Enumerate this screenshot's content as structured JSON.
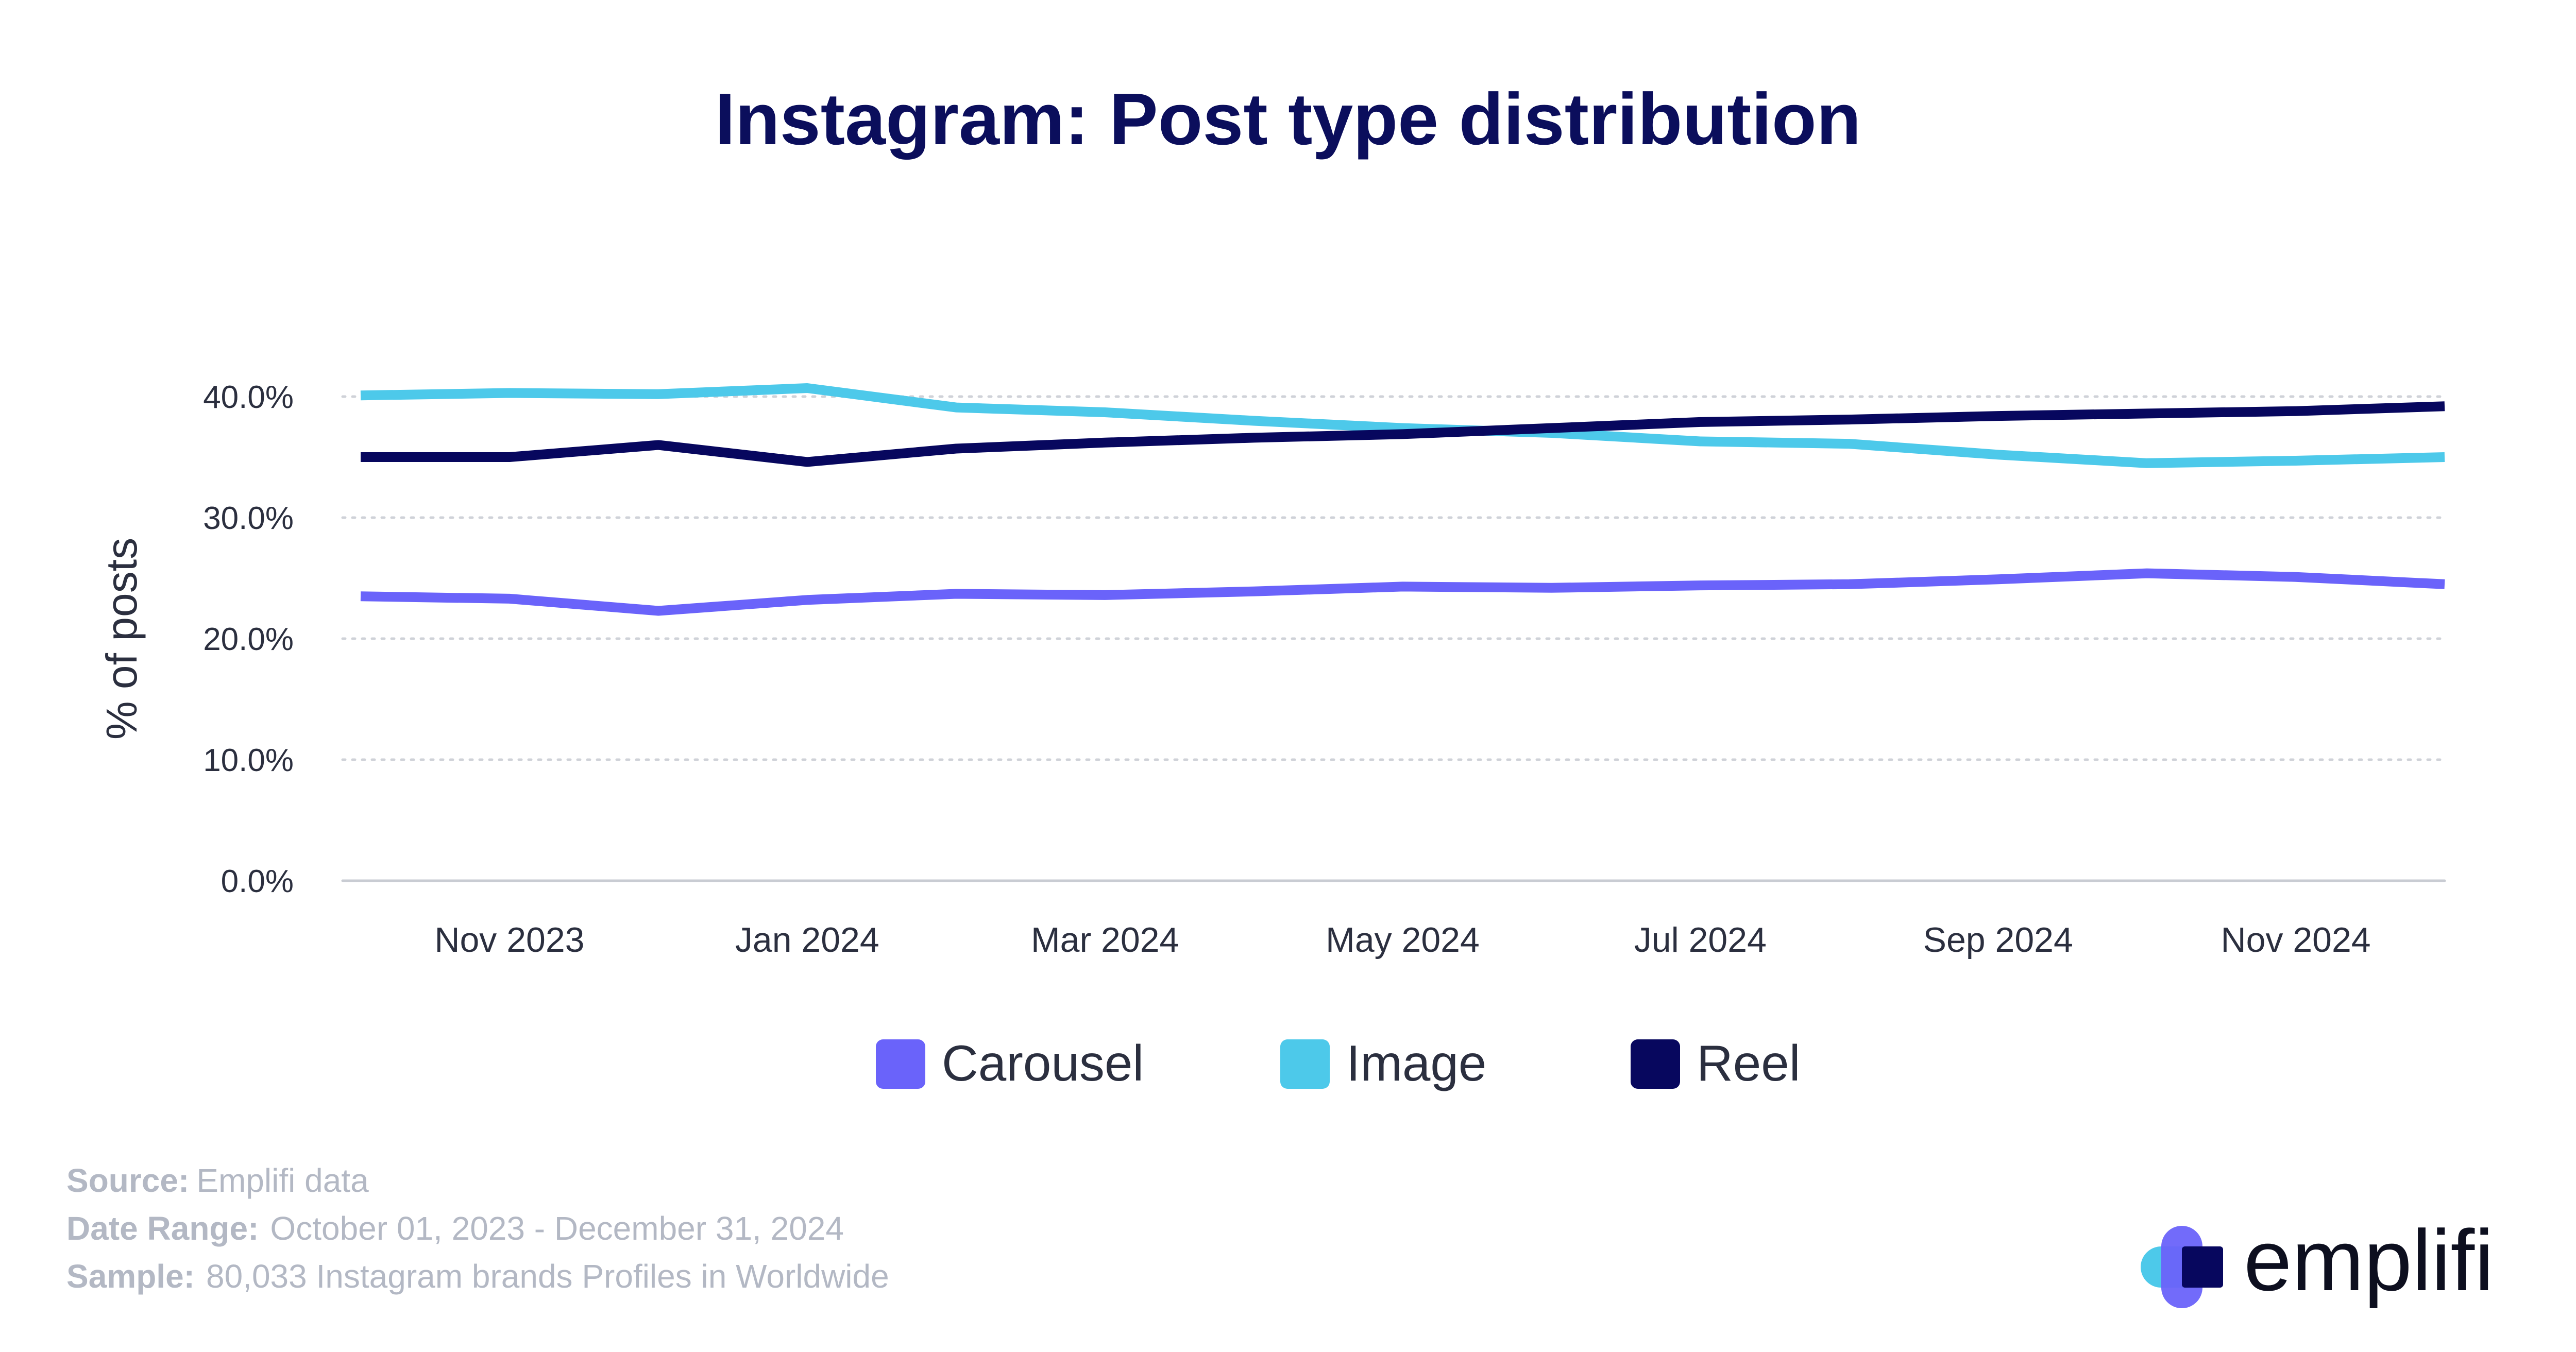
{
  "chart_data": {
    "type": "line",
    "title": "Instagram: Post type distribution",
    "ylabel": "% of posts",
    "xlabel": "",
    "ylim": [
      0,
      40
    ],
    "yticks": [
      "0.0%",
      "10.0%",
      "20.0%",
      "30.0%",
      "40.0%"
    ],
    "ytick_values": [
      0,
      10,
      20,
      30,
      40
    ],
    "x": [
      "2023-10",
      "2023-11",
      "2023-12",
      "2024-01",
      "2024-02",
      "2024-03",
      "2024-04",
      "2024-05",
      "2024-06",
      "2024-07",
      "2024-08",
      "2024-09",
      "2024-10",
      "2024-11",
      "2024-12"
    ],
    "xticks": [
      "Nov 2023",
      "Jan 2024",
      "Mar 2024",
      "May 2024",
      "Jul 2024",
      "Sep 2024",
      "Nov 2024"
    ],
    "xtick_values": [
      "2023-11",
      "2024-01",
      "2024-03",
      "2024-05",
      "2024-07",
      "2024-09",
      "2024-11"
    ],
    "series": [
      {
        "name": "Carousel",
        "color": "#6a63fa",
        "values": [
          23.5,
          23.3,
          22.3,
          23.2,
          23.7,
          23.6,
          23.9,
          24.3,
          24.2,
          24.4,
          24.5,
          24.9,
          25.4,
          25.1,
          24.5
        ]
      },
      {
        "name": "Image",
        "color": "#4dc9ea",
        "values": [
          40.1,
          40.3,
          40.2,
          40.7,
          39.1,
          38.7,
          38.0,
          37.4,
          37.0,
          36.3,
          36.1,
          35.2,
          34.5,
          34.7,
          35.0
        ]
      },
      {
        "name": "Reel",
        "color": "#07075e",
        "values": [
          35.0,
          35.0,
          36.0,
          34.6,
          35.7,
          36.2,
          36.6,
          36.9,
          37.4,
          37.9,
          38.1,
          38.4,
          38.6,
          38.8,
          39.2
        ]
      }
    ],
    "grid": "horizontal-dotted",
    "legend": "bottom-center"
  },
  "footer": {
    "source_label": "Source:",
    "source_value": "Emplifi data",
    "daterange_label": "Date Range:",
    "daterange_value": "October 01, 2023 - December 31, 2024",
    "sample_label": "Sample:",
    "sample_value": "80,033 Instagram brands Profiles in Worldwide"
  },
  "logo": {
    "text": "emplifi",
    "colors": [
      "#4dc9ea",
      "#6a63fa",
      "#07075e"
    ]
  }
}
